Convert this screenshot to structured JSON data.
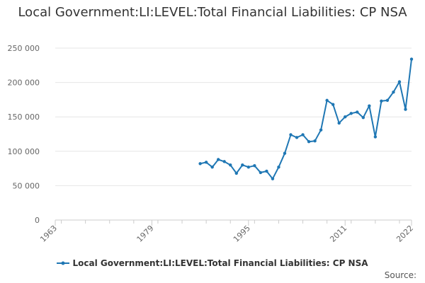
{
  "chart_data": {
    "type": "line",
    "title": "Local Government:LI:LEVEL:Total Financial Liabilities: CP NSA",
    "xlabel": "",
    "ylabel": "",
    "xlim": [
      1963,
      2022
    ],
    "ylim": [
      0,
      250000
    ],
    "x_ticks": [
      1963,
      1979,
      1995,
      2011,
      2022
    ],
    "y_ticks": [
      0,
      50000,
      100000,
      150000,
      200000,
      250000
    ],
    "y_tick_labels": [
      "0",
      "50 000",
      "100 000",
      "150 000",
      "200 000",
      "250 000"
    ],
    "series": [
      {
        "name": "Local Government:LI:LEVEL:Total Financial Liabilities: CP NSA",
        "color": "#1f77b4",
        "x": [
          1987,
          1988,
          1989,
          1990,
          1991,
          1992,
          1993,
          1994,
          1995,
          1996,
          1997,
          1998,
          1999,
          2000,
          2001,
          2002,
          2003,
          2004,
          2005,
          2006,
          2007,
          2008,
          2009,
          2010,
          2011,
          2012,
          2013,
          2014,
          2015,
          2016,
          2017,
          2018,
          2019,
          2020,
          2021,
          2022
        ],
        "values": [
          82000,
          84000,
          77000,
          88000,
          85000,
          80000,
          68000,
          80000,
          77000,
          79000,
          69000,
          71000,
          60000,
          77000,
          97000,
          124000,
          120000,
          124000,
          114000,
          115000,
          131000,
          174000,
          168000,
          141000,
          150000,
          155000,
          157000,
          149000,
          166000,
          121000,
          173000,
          174000,
          186000,
          201000,
          161000,
          234000
        ]
      }
    ],
    "legend": {
      "position": "bottom",
      "label": "Local Government:LI:LEVEL:Total Financial Liabilities: CP NSA"
    },
    "source_label": "Source:"
  }
}
